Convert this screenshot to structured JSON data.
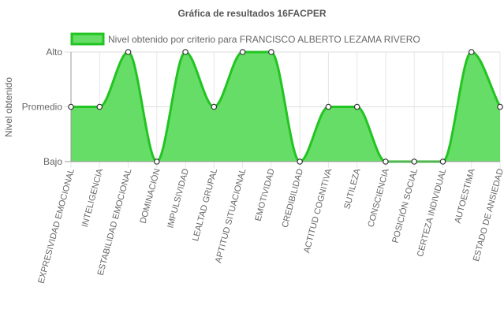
{
  "chart_data": {
    "type": "area",
    "title": "Gráfica de resultados 16FACPER",
    "ylabel": "Nivel obtenido",
    "xlabel": "",
    "y_levels": [
      "Bajo",
      "Promedio",
      "Alto"
    ],
    "ylim": [
      0,
      2
    ],
    "legend_position": "top",
    "grid": true,
    "colors": {
      "fill": "#66dd66",
      "line": "#22c422",
      "point_fill": "#ffffff",
      "point_stroke": "#333333"
    },
    "categories": [
      "EXPRESIVIDAD EMOCIONAL",
      "INTELIGENCIA",
      "ESTABILIDAD EMOCIONAL",
      "DOMINACIÓN",
      "IMPULSIVIDAD",
      "LEALTAD GRUPAL",
      "APTITUD SITUACIONAL",
      "EMOTIVIDAD",
      "CREDIBILIDAD",
      "ACTITUD COGNITIVA",
      "SUTILEZA",
      "CONSCIENCIA",
      "POSICIÓN SOCIAL",
      "CERTEZA INDIVIDUAL",
      "AUTOESTIMA",
      "ESTADO DE ANSIEDAD"
    ],
    "series": [
      {
        "name": "Nivel obtenido por criterio para FRANCISCO ALBERTO LEZAMA RIVERO",
        "values": [
          1,
          1,
          2,
          0,
          2,
          1,
          2,
          2,
          0,
          1,
          1,
          0,
          0,
          0,
          2,
          1
        ]
      }
    ]
  }
}
